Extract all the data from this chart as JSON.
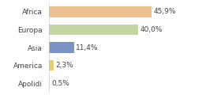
{
  "categories": [
    "Africa",
    "Europa",
    "Asia",
    "America",
    "Apolidi"
  ],
  "values": [
    45.9,
    40.0,
    11.4,
    2.3,
    0.5
  ],
  "labels": [
    "45,9%",
    "40,0%",
    "11,4%",
    "2,3%",
    "0,5%"
  ],
  "bar_colors": [
    "#f0c090",
    "#c5d5a0",
    "#7b93c4",
    "#e8d060",
    "#e0e0e0"
  ],
  "background_color": "#ffffff",
  "xlim": [
    0,
    62
  ],
  "label_fontsize": 6.5,
  "tick_fontsize": 6.5
}
